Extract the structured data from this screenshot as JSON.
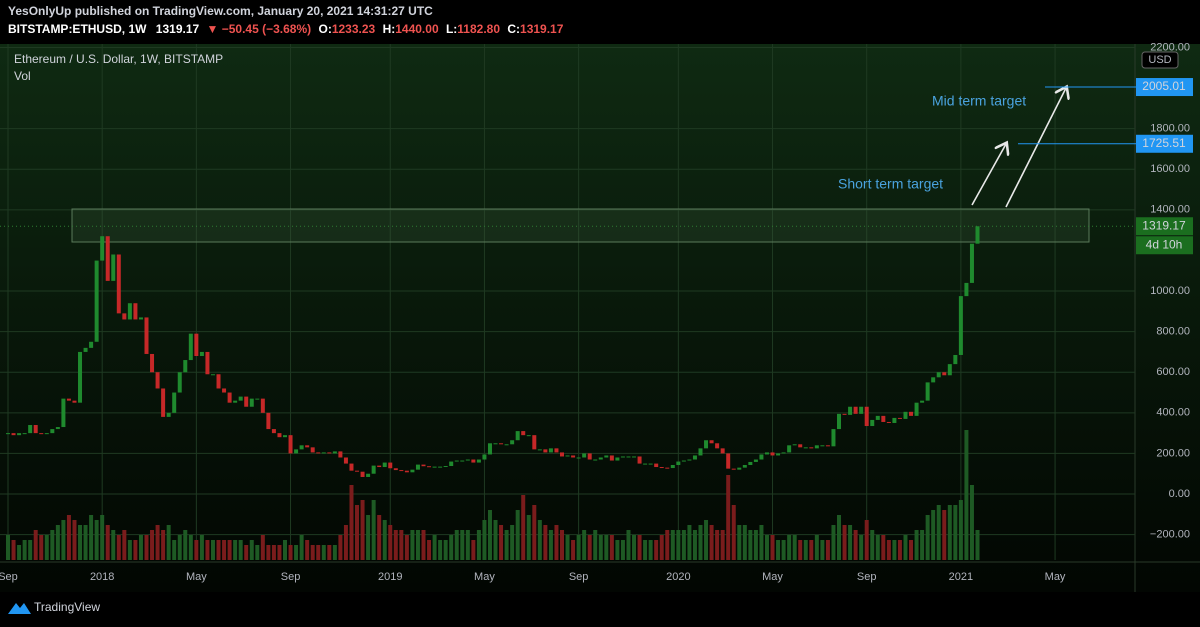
{
  "header": {
    "author_line": "YesOnlyUp published on TradingView.com, January 20, 2021 14:31:27 UTC",
    "symbol": "BITSTAMP:ETHUSD, 1W",
    "last": "1319.17",
    "change": "▼ −50.45 (−3.68%)",
    "open_label": "O:",
    "open": "1233.23",
    "high_label": "H:",
    "high": "1440.00",
    "low_label": "L:",
    "low": "1182.80",
    "close_label": "C:",
    "close": "1319.17"
  },
  "chart_data": {
    "type": "candlestick",
    "legend_title": "Ethereum / U.S. Dollar, 1W, BITSTAMP",
    "volume_label": "Vol",
    "currency": "USD",
    "up_color": "#1f8a2e",
    "down_color": "#c62828",
    "volume_up_color": "#1e5a24",
    "volume_down_color": "#7a1c1c",
    "grid": true,
    "categories": [
      "Sep",
      null,
      null,
      null,
      null,
      null,
      null,
      null,
      null,
      null,
      null,
      null,
      null,
      null,
      null,
      null,
      null,
      "2018",
      null,
      null,
      null,
      null,
      null,
      null,
      null,
      null,
      null,
      null,
      null,
      null,
      null,
      null,
      null,
      null,
      "May",
      null,
      null,
      null,
      null,
      null,
      null,
      null,
      null,
      null,
      null,
      null,
      null,
      null,
      null,
      null,
      null,
      "Sep",
      null,
      null,
      null,
      null,
      null,
      null,
      null,
      null,
      null,
      null,
      null,
      null,
      null,
      null,
      null,
      null,
      null,
      "2019",
      null,
      null,
      null,
      null,
      null,
      null,
      null,
      null,
      null,
      null,
      null,
      null,
      null,
      null,
      null,
      null,
      "May",
      null,
      null,
      null,
      null,
      null,
      null,
      null,
      null,
      null,
      null,
      null,
      null,
      null,
      null,
      null,
      null,
      "Sep",
      null,
      null,
      null,
      null,
      null,
      null,
      null,
      null,
      null,
      null,
      null,
      null,
      null,
      null,
      null,
      null,
      null,
      "2020",
      null,
      null,
      null,
      null,
      null,
      null,
      null,
      null,
      null,
      null,
      null,
      null,
      null,
      null,
      null,
      null,
      "May",
      null,
      null,
      null,
      null,
      null,
      null,
      null,
      null,
      null,
      null,
      null,
      null,
      null,
      null,
      null,
      null,
      "Sep",
      null,
      null,
      null,
      null,
      null,
      null,
      null,
      null,
      null,
      null,
      null,
      null,
      null,
      null,
      null,
      null,
      "2021",
      null,
      null,
      null,
      null,
      null,
      null,
      null,
      null,
      null,
      null,
      null,
      null,
      null,
      null,
      null,
      null,
      "May",
      null,
      null,
      null,
      null,
      null,
      null,
      null,
      null,
      null,
      null,
      null,
      null,
      null,
      null
    ],
    "close": [
      300,
      290,
      300,
      300,
      340,
      300,
      295,
      300,
      320,
      330,
      470,
      460,
      450,
      700,
      720,
      750,
      1150,
      1270,
      1050,
      1180,
      890,
      860,
      940,
      860,
      870,
      690,
      600,
      520,
      380,
      400,
      500,
      600,
      660,
      790,
      680,
      700,
      590,
      590,
      520,
      500,
      450,
      460,
      480,
      430,
      470,
      470,
      400,
      320,
      300,
      280,
      290,
      200,
      220,
      240,
      230,
      205,
      200,
      205,
      200,
      210,
      180,
      150,
      115,
      110,
      84,
      100,
      140,
      133,
      155,
      127,
      118,
      115,
      107,
      120,
      145,
      137,
      133,
      135,
      135,
      138,
      160,
      165,
      165,
      170,
      155,
      170,
      195,
      250,
      250,
      245,
      245,
      265,
      310,
      290,
      290,
      220,
      220,
      205,
      225,
      205,
      185,
      190,
      180,
      180,
      200,
      170,
      170,
      180,
      190,
      165,
      180,
      185,
      185,
      185,
      150,
      150,
      150,
      133,
      130,
      128,
      143,
      160,
      165,
      170,
      190,
      225,
      265,
      250,
      225,
      200,
      125,
      120,
      130,
      143,
      158,
      170,
      195,
      205,
      190,
      200,
      205,
      240,
      245,
      230,
      230,
      225,
      240,
      240,
      235,
      320,
      395,
      390,
      430,
      395,
      430,
      335,
      365,
      385,
      355,
      350,
      375,
      370,
      405,
      385,
      450,
      460,
      550,
      575,
      600,
      585,
      640,
      685,
      975,
      1040,
      1233.23,
      1319.17,
      null,
      null,
      null,
      null,
      null,
      null,
      null,
      null,
      null,
      null,
      null,
      null,
      null,
      null,
      null,
      null,
      null,
      null,
      null,
      null,
      null,
      null,
      null,
      null,
      null,
      null,
      null,
      null
    ],
    "volume": [
      25,
      20,
      15,
      20,
      20,
      30,
      25,
      25,
      30,
      35,
      40,
      45,
      40,
      35,
      35,
      45,
      40,
      45,
      35,
      30,
      25,
      30,
      20,
      20,
      25,
      25,
      30,
      35,
      30,
      35,
      20,
      25,
      30,
      25,
      20,
      25,
      20,
      20,
      20,
      20,
      20,
      20,
      20,
      15,
      20,
      15,
      25,
      15,
      15,
      15,
      20,
      15,
      15,
      25,
      20,
      15,
      15,
      15,
      15,
      15,
      25,
      35,
      75,
      55,
      60,
      45,
      60,
      45,
      40,
      35,
      30,
      30,
      25,
      30,
      30,
      30,
      20,
      25,
      20,
      20,
      25,
      30,
      30,
      30,
      20,
      30,
      40,
      50,
      40,
      35,
      30,
      35,
      50,
      65,
      45,
      55,
      40,
      35,
      30,
      35,
      30,
      25,
      20,
      25,
      30,
      25,
      30,
      25,
      25,
      25,
      20,
      20,
      30,
      25,
      25,
      20,
      20,
      20,
      25,
      30,
      30,
      30,
      30,
      35,
      30,
      35,
      40,
      35,
      30,
      30,
      85,
      55,
      35,
      35,
      30,
      30,
      35,
      25,
      25,
      20,
      20,
      25,
      25,
      20,
      20,
      20,
      25,
      20,
      20,
      35,
      45,
      35,
      35,
      30,
      25,
      40,
      30,
      25,
      25,
      20,
      20,
      20,
      25,
      20,
      30,
      30,
      45,
      50,
      55,
      50,
      55,
      55,
      60,
      130,
      75,
      30,
      null,
      null,
      null,
      null,
      null,
      null,
      null,
      null,
      null,
      null,
      null,
      null,
      null,
      null,
      null,
      null,
      null,
      null,
      null,
      null,
      null,
      null,
      null,
      null,
      null,
      null,
      null,
      null
    ],
    "ylim": [
      -325,
      2217
    ],
    "yticks": [
      {
        "value": -200,
        "label": "−200.00"
      },
      {
        "value": 0,
        "label": "0.00"
      },
      {
        "value": 200,
        "label": "200.00"
      },
      {
        "value": 400,
        "label": "400.00"
      },
      {
        "value": 600,
        "label": "600.00"
      },
      {
        "value": 800,
        "label": "800.00"
      },
      {
        "value": 1000,
        "label": "1000.00"
      },
      {
        "value": 1400,
        "label": "1400.00"
      },
      {
        "value": 1600,
        "label": "1600.00"
      },
      {
        "value": 1800,
        "label": "1800.00"
      },
      {
        "value": 2200,
        "label": "2200.00"
      }
    ],
    "targets": [
      2005.01,
      1725.51
    ],
    "last_price": 1319.17,
    "countdown": "4d 10h",
    "annotations": [
      "Short term target",
      "Mid term target"
    ]
  }
}
